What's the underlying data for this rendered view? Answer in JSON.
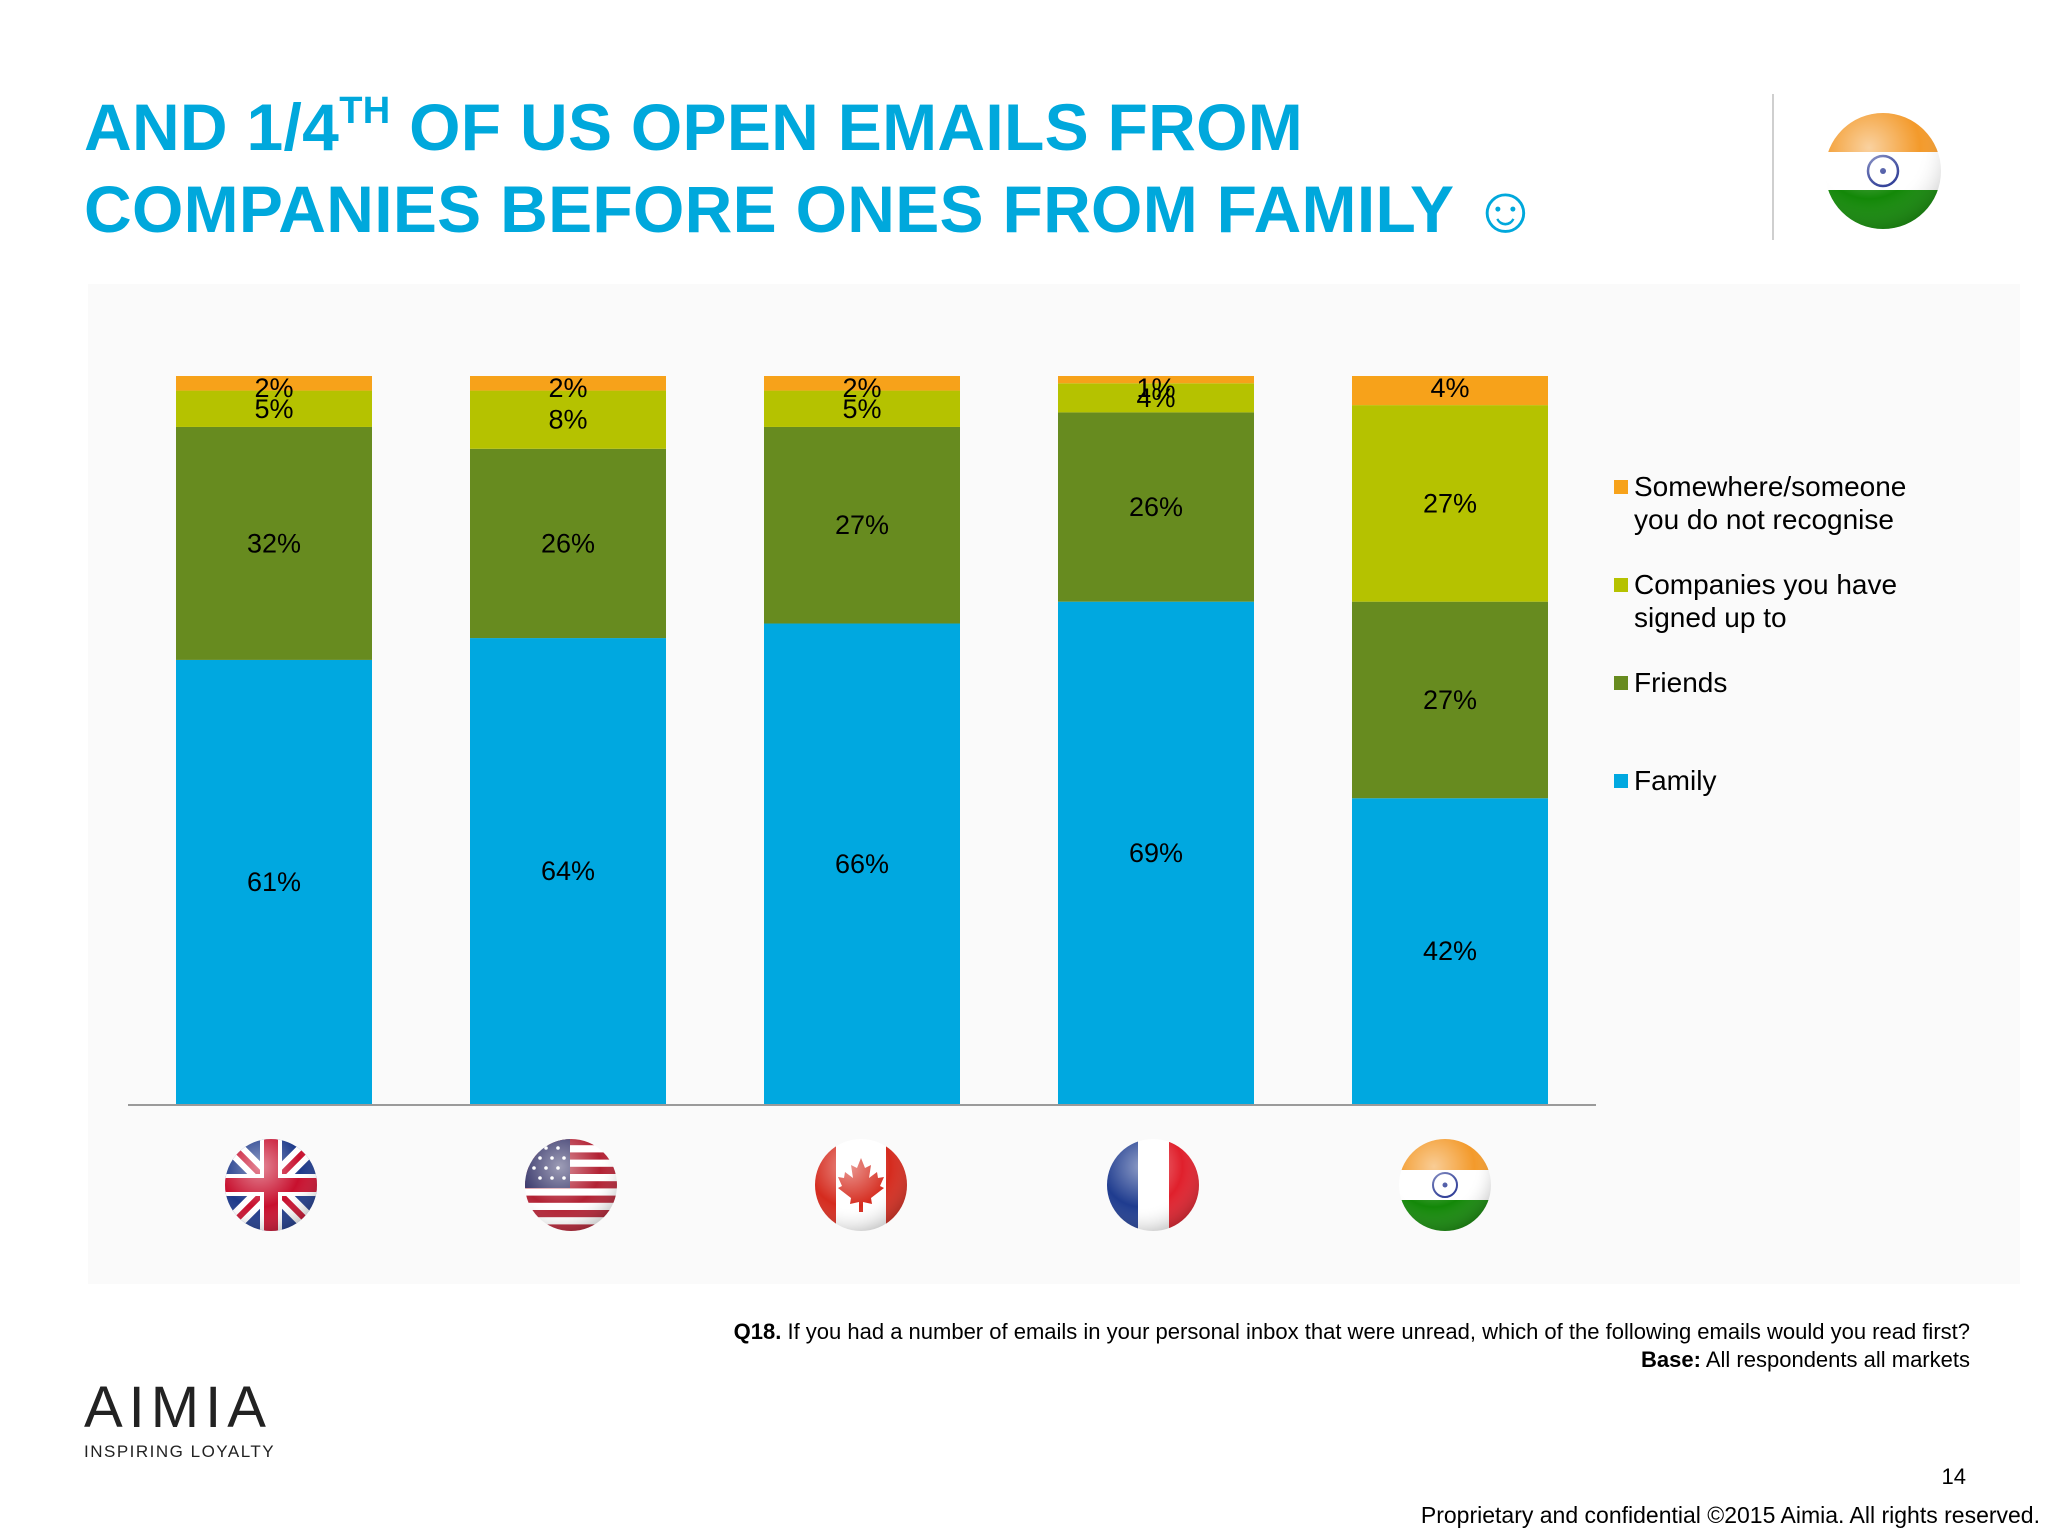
{
  "slide": {
    "title_line1_a": "AND 1/4",
    "title_line1_sup": "TH",
    "title_line1_b": " OF US OPEN EMAILS FROM",
    "title_line2": "COMPANIES BEFORE ONES FROM FAMILY",
    "title_emoji": "☺",
    "question_label": "Q18.",
    "question_text": " If you had a number of emails in your personal inbox that were unread, which of the following emails would you read first?",
    "base_label": "Base:",
    "base_text": "  All respondents all markets",
    "page_number": "14",
    "copyright": "Proprietary and confidential ©2015 Aimia. All rights reserved.",
    "logo_word": "AIMIA",
    "logo_tagline": "INSPIRING LOYALTY",
    "header_flag": "india-flag-icon"
  },
  "colors": {
    "title": "#00a8dc",
    "family": "#00a8e0",
    "friends": "#678b1f",
    "companies": "#b5c200",
    "unknown": "#f7a21a"
  },
  "chart_data": {
    "type": "bar",
    "stacked": true,
    "normalized": true,
    "categories": [
      "UK",
      "USA",
      "Canada",
      "France",
      "India"
    ],
    "category_icons": [
      "uk-flag-icon",
      "us-flag-icon",
      "canada-flag-icon",
      "france-flag-icon",
      "india-flag-icon"
    ],
    "series": [
      {
        "name": "Family",
        "color": "#00a8e0",
        "values": [
          61,
          64,
          66,
          69,
          42
        ],
        "labels": [
          "61%",
          "64%",
          "66%",
          "69%",
          "42%"
        ]
      },
      {
        "name": "Friends",
        "color": "#678b1f",
        "values": [
          32,
          26,
          27,
          26,
          27
        ],
        "labels": [
          "32%",
          "26%",
          "27%",
          "26%",
          "27%"
        ]
      },
      {
        "name": "Companies you have signed up to",
        "color": "#b5c200",
        "values": [
          5,
          8,
          5,
          4,
          27
        ],
        "labels": [
          "5%",
          "8%",
          "5%",
          "4%",
          "27%"
        ]
      },
      {
        "name": "Somewhere/someone you do not recognise",
        "color": "#f7a21a",
        "values": [
          2,
          2,
          2,
          1,
          4
        ],
        "labels": [
          "2%",
          "2%",
          "2%",
          "1%",
          "4%"
        ]
      }
    ],
    "legend": {
      "position": "right",
      "entries": [
        "Somewhere/someone you do not recognise",
        "Companies you have signed up to",
        "Friends",
        "Family"
      ]
    },
    "ylim": [
      0,
      100
    ],
    "grid": false,
    "axes_visible": false
  }
}
